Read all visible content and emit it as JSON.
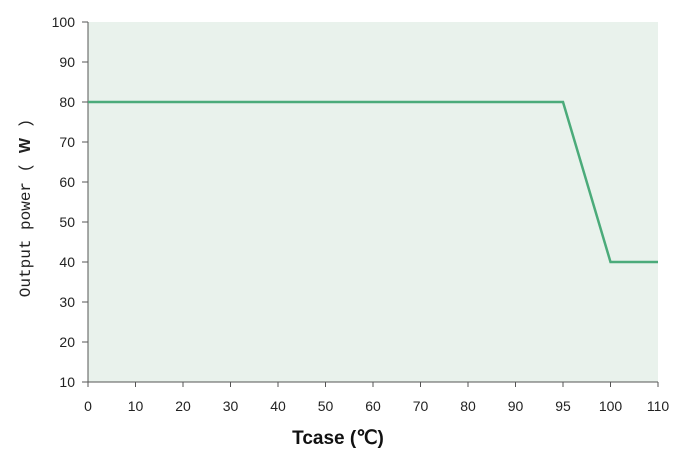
{
  "chart_data": {
    "type": "line",
    "xlabel": "Tcase (℃)",
    "ylabel_text": "Output power",
    "ylabel_unit": "W",
    "x_ticks": [
      "0",
      "10",
      "20",
      "30",
      "40",
      "50",
      "60",
      "70",
      "80",
      "90",
      "95",
      "100",
      "110"
    ],
    "y_ticks": [
      "10",
      "20",
      "30",
      "40",
      "50",
      "60",
      "70",
      "80",
      "90",
      "100"
    ],
    "ylim": [
      10,
      100
    ],
    "x_axis_note": "tick positions are non-linear: 0–90 evenly spaced by 10, then 95, 100, 110 each one step",
    "series": [
      {
        "points": [
          {
            "x": 0,
            "y": 80
          },
          {
            "x": 95,
            "y": 80
          },
          {
            "x": 100,
            "y": 40
          },
          {
            "x": 110,
            "y": 40
          }
        ]
      }
    ],
    "grid": false,
    "colors": {
      "plot_background": "#e9f2ec",
      "line": "#4bab7a",
      "axis": "#555555"
    }
  }
}
